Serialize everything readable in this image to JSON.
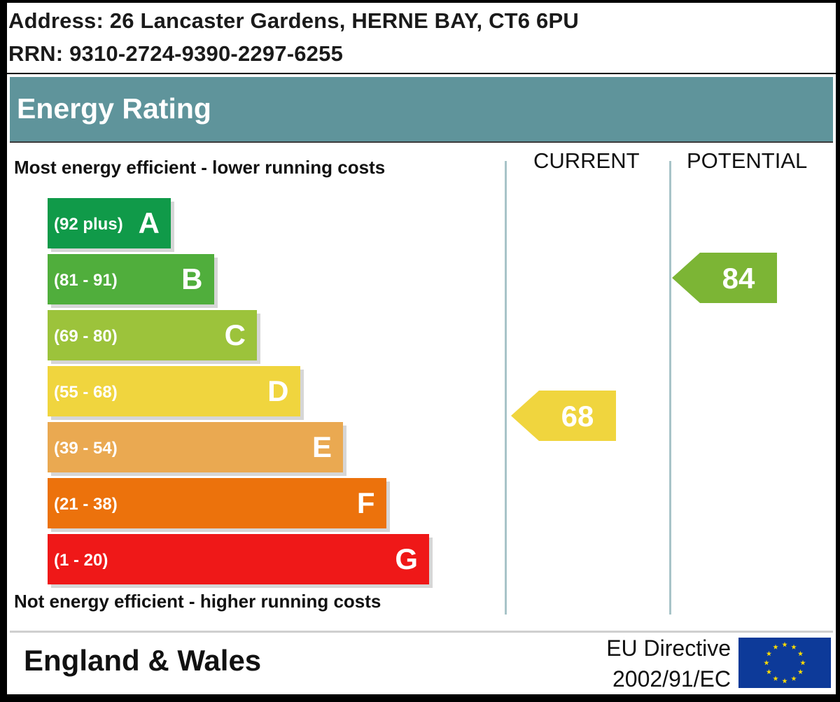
{
  "address": {
    "line1": "Address: 26 Lancaster Gardens, HERNE BAY, CT6 6PU",
    "line2": "RRN: 9310-2724-9390-2297-6255"
  },
  "title": "Energy Rating",
  "columns": {
    "current": "CURRENT",
    "potential": "POTENTIAL"
  },
  "notes": {
    "top": "Most energy efficient - lower running costs",
    "bottom": "Not energy efficient - higher running costs"
  },
  "footer": {
    "region": "England & Wales",
    "directive_line1": "EU Directive",
    "directive_line2": "2002/91/EC",
    "flag_icon": "eu-flag-icon"
  },
  "chart_data": {
    "type": "bar",
    "categories": [
      "A",
      "B",
      "C",
      "D",
      "E",
      "F",
      "G"
    ],
    "ranges": [
      "(92 plus)",
      "(81 - 91)",
      "(69 - 80)",
      "(55 - 68)",
      "(39 - 54)",
      "(21 - 38)",
      "(1 - 20)"
    ],
    "colors": [
      "#109a49",
      "#50ae3c",
      "#9cc33b",
      "#f0d53e",
      "#eaa951",
      "#ec720c",
      "#ef1818"
    ],
    "current": {
      "value": 68,
      "band": "D",
      "color": "#f0d53e"
    },
    "potential": {
      "value": 84,
      "band": "B",
      "color": "#7cb535"
    }
  }
}
